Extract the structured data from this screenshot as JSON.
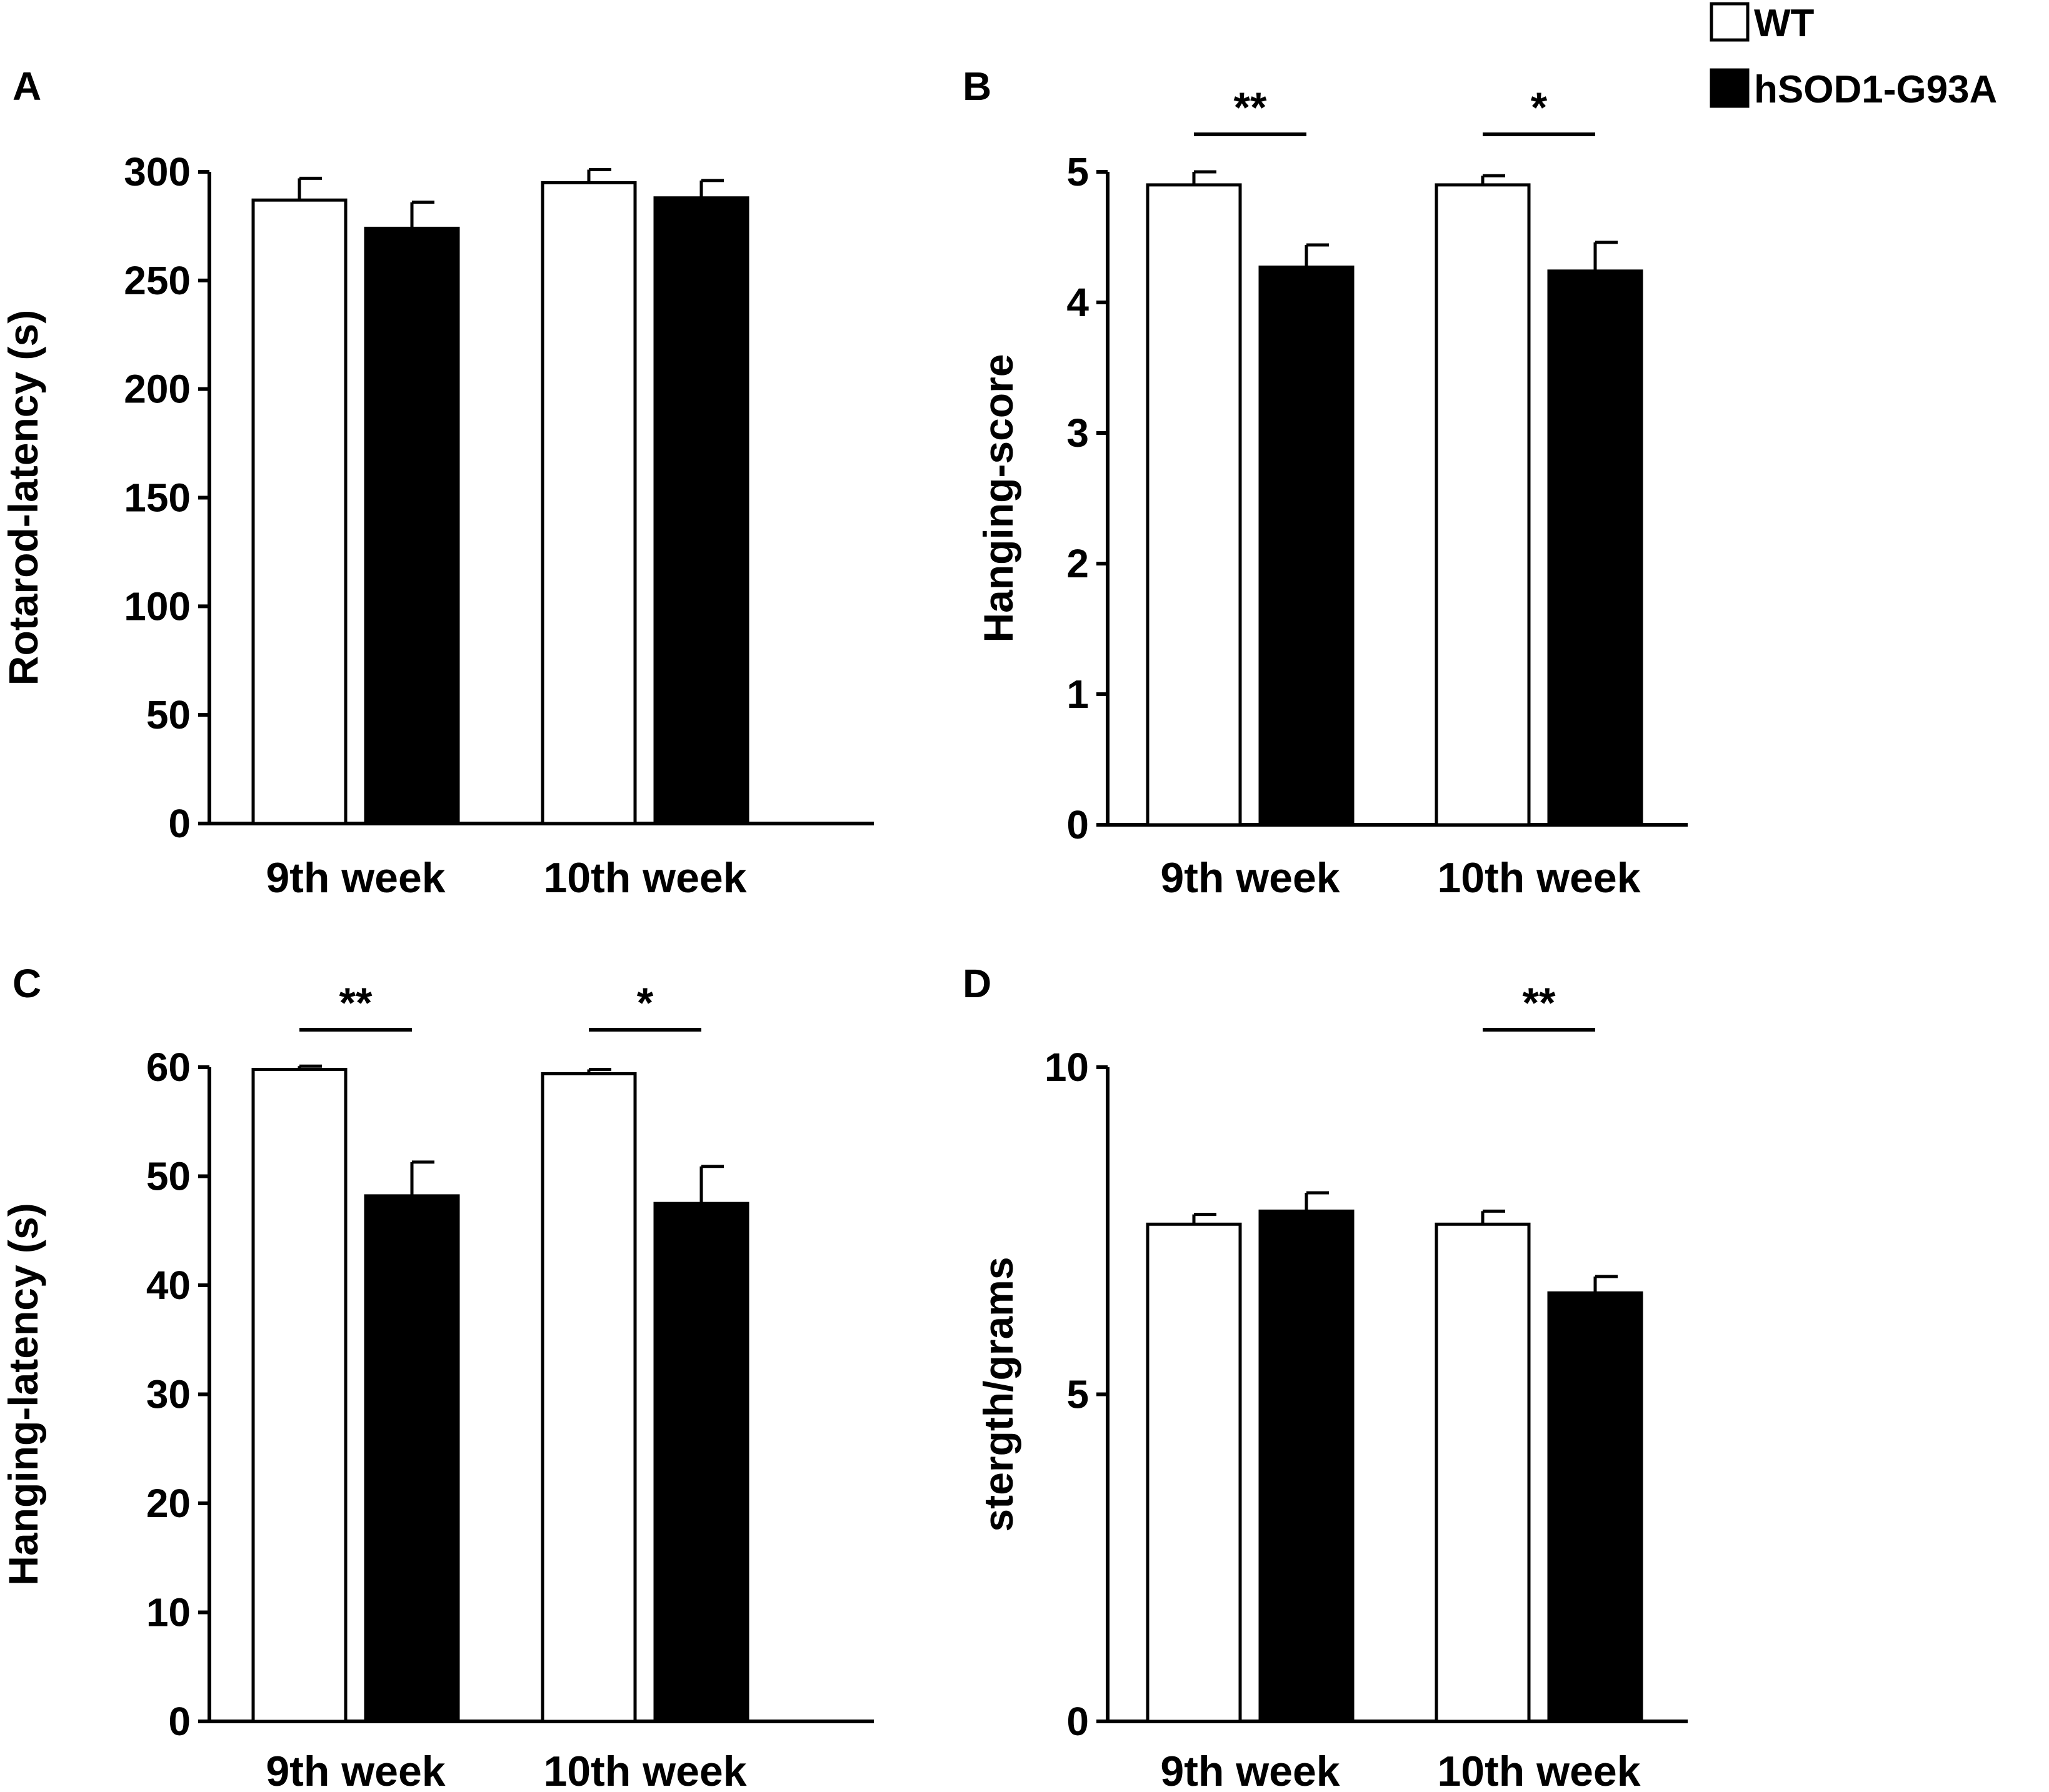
{
  "legend": [
    {
      "label": "WT",
      "fill": "#ffffff"
    },
    {
      "label": "hSOD1-G93A",
      "fill": "#000000"
    }
  ],
  "chart_data": [
    {
      "panel": "A",
      "type": "bar",
      "categories": [
        "9th week",
        "10th week"
      ],
      "series": [
        {
          "name": "WT",
          "values": [
            287,
            295
          ],
          "errors": [
            10,
            6
          ]
        },
        {
          "name": "hSOD1-G93A",
          "values": [
            274,
            288
          ],
          "errors": [
            12,
            8
          ]
        }
      ],
      "ylabel": "Rotarod-latency (s)",
      "ylim": [
        0,
        300
      ],
      "yticks": [
        "0",
        "50",
        "100",
        "150",
        "200",
        "250",
        "300"
      ],
      "significance": []
    },
    {
      "panel": "B",
      "type": "bar",
      "categories": [
        "9th week",
        "10th week"
      ],
      "series": [
        {
          "name": "WT",
          "values": [
            4.9,
            4.9
          ],
          "errors": [
            0.1,
            0.07
          ]
        },
        {
          "name": "hSOD1-G93A",
          "values": [
            4.27,
            4.24
          ],
          "errors": [
            0.17,
            0.22
          ]
        }
      ],
      "ylabel": "Hanging-score",
      "ylim": [
        0,
        5
      ],
      "yticks": [
        "0",
        "1",
        "2",
        "3",
        "4",
        "5"
      ],
      "significance": [
        {
          "category_index": 0,
          "label": "**"
        },
        {
          "category_index": 1,
          "label": "*"
        }
      ]
    },
    {
      "panel": "C",
      "type": "bar",
      "categories": [
        "9th week",
        "10th week"
      ],
      "series": [
        {
          "name": "WT",
          "values": [
            59.8,
            59.4
          ],
          "errors": [
            0.3,
            0.4
          ]
        },
        {
          "name": "hSOD1-G93A",
          "values": [
            48.2,
            47.5
          ],
          "errors": [
            3.1,
            3.4
          ]
        }
      ],
      "ylabel": "Hanging-latency (s)",
      "ylim": [
        0,
        60
      ],
      "yticks": [
        "0",
        "10",
        "20",
        "30",
        "40",
        "50",
        "60"
      ],
      "significance": [
        {
          "category_index": 0,
          "label": "**"
        },
        {
          "category_index": 1,
          "label": "*"
        }
      ]
    },
    {
      "panel": "D",
      "type": "bar",
      "categories": [
        "9th week",
        "10th week"
      ],
      "series": [
        {
          "name": "WT",
          "values": [
            7.6,
            7.6
          ],
          "errors": [
            0.15,
            0.2
          ]
        },
        {
          "name": "hSOD1-G93A",
          "values": [
            7.8,
            6.55
          ],
          "errors": [
            0.28,
            0.25
          ]
        }
      ],
      "ylabel": "stergth/grams",
      "ylim": [
        0,
        10
      ],
      "yticks": [
        "0",
        "5",
        "10"
      ],
      "significance": [
        {
          "category_index": 1,
          "label": "**"
        }
      ]
    }
  ]
}
